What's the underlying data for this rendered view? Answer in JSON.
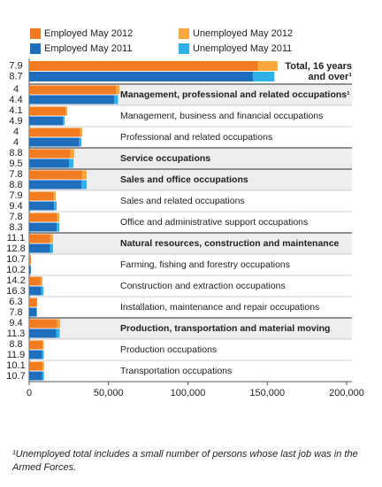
{
  "chart_data": {
    "type": "bar",
    "categories": [
      "Total, 16 years and over¹",
      "Management, professional and related occupations¹",
      "Management, business and financial occupations",
      "Professional and related occupations",
      "Service occupations",
      "Sales and office occupations",
      "Sales and related occupations",
      "Office and administrative support occupations",
      "Natural resources, construction and maintenance",
      "Farming, fishing and forestry occupations",
      "Construction and extraction occupations",
      "Installation, maintenance and repair occupations",
      "Production, transportation and material moving",
      "Production occupations",
      "Transportation occupations"
    ],
    "bold": [
      true,
      true,
      false,
      false,
      true,
      true,
      false,
      false,
      true,
      false,
      false,
      false,
      true,
      false,
      false
    ],
    "rate_2012": [
      7.9,
      4.0,
      4.1,
      4.0,
      8.8,
      7.8,
      7.9,
      7.8,
      11.1,
      10.7,
      14.2,
      6.3,
      9.4,
      8.8,
      10.1
    ],
    "rate_2011": [
      8.7,
      4.4,
      4.9,
      4.0,
      9.5,
      8.8,
      9.4,
      8.3,
      12.8,
      10.2,
      16.3,
      7.8,
      11.3,
      11.9,
      10.7
    ],
    "series": [
      {
        "name": "Employed May 2012",
        "color": "#f47b20",
        "year": 2012,
        "values": [
          144000,
          54600,
          23000,
          32100,
          25900,
          33400,
          15400,
          17500,
          13300,
          1070,
          7200,
          4800,
          17700,
          8500,
          8400
        ]
      },
      {
        "name": "Unemployed May 2012",
        "color": "#f9a83d",
        "year": 2012,
        "values": [
          12500,
          2300,
          1000,
          1300,
          2500,
          2800,
          1300,
          1500,
          1700,
          130,
          1200,
          300,
          1800,
          800,
          1000
        ]
      },
      {
        "name": "Employed May 2011",
        "color": "#1d6fbe",
        "year": 2011,
        "values": [
          141000,
          53500,
          21200,
          31600,
          25200,
          33000,
          15700,
          17400,
          13100,
          1000,
          7500,
          4600,
          17000,
          8100,
          8300
        ]
      },
      {
        "name": "Unemployed May 2011",
        "color": "#2eb1e8",
        "year": 2011,
        "values": [
          13500,
          2500,
          1100,
          1300,
          2700,
          3200,
          1600,
          1600,
          1900,
          110,
          1500,
          400,
          2200,
          1100,
          1000
        ]
      }
    ],
    "xlim": [
      0,
      200000
    ],
    "xticks": [
      0,
      {
        "value": 50000,
        "label": "50,000"
      },
      {
        "value": 100000,
        "label": "100,000"
      },
      {
        "value": 150000,
        "label": "150,000"
      },
      {
        "value": 200000,
        "label": "200,000"
      }
    ],
    "footnote": "¹Unemployed total includes a small number of persons whose last job was in the Armed Forces."
  }
}
